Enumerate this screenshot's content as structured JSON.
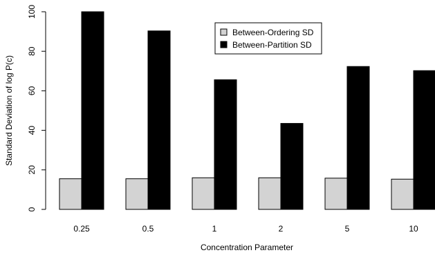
{
  "chart_data": {
    "type": "bar",
    "xlabel": "Concentration Parameter",
    "ylabel": "Standard Deviation of log P(c)",
    "categories": [
      "0.25",
      "0.5",
      "1",
      "2",
      "5",
      "10"
    ],
    "series": [
      {
        "name": "Between-Ordering SD",
        "color": "#d3d3d3",
        "values": [
          15.5,
          15.5,
          16.0,
          16.0,
          15.8,
          15.3
        ]
      },
      {
        "name": "Between-Partition SD",
        "color": "#000000",
        "values": [
          100.0,
          90.3,
          65.6,
          43.5,
          72.3,
          70.2
        ]
      }
    ],
    "ylim": [
      0,
      100
    ],
    "yticks": [
      0,
      20,
      40,
      60,
      80,
      100
    ],
    "legend_position": "top-right",
    "grid": false
  }
}
